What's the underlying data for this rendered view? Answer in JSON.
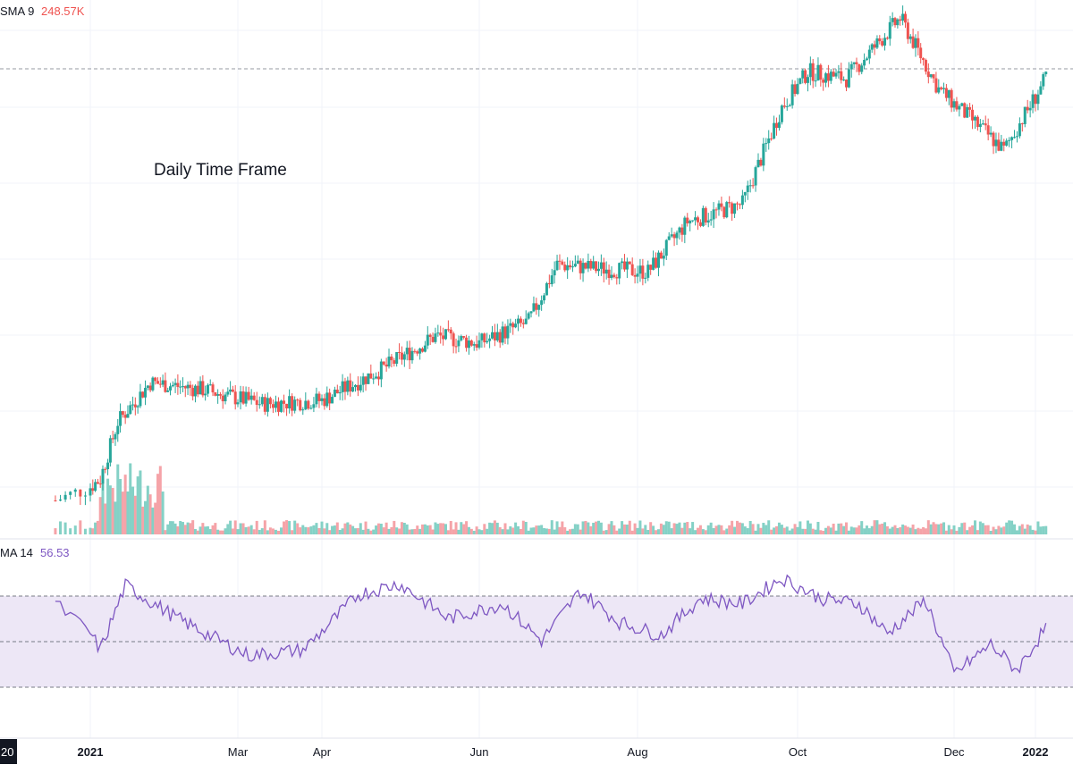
{
  "header": {
    "volume_indicator": "SMA 9",
    "volume_value": "248.57K",
    "rsi_indicator": "MA 14",
    "rsi_value": "56.53"
  },
  "annotation": "Daily Time Frame",
  "colors": {
    "up": "#26a69a",
    "up_volume": "#84d1c6",
    "down": "#ef5350",
    "down_volume": "#f5a3a8",
    "rsi_line": "#7e57c2",
    "rsi_band": "#ede7f6",
    "grid": "#f0f3fa",
    "volume_value_color": "#ef5350",
    "rsi_value_color": "#7e57c2"
  },
  "x_axis": {
    "ticks": [
      {
        "label": "20",
        "dark": true
      },
      {
        "label": "2021",
        "bold": true
      },
      {
        "label": "Mar"
      },
      {
        "label": "Apr"
      },
      {
        "label": "Jun"
      },
      {
        "label": "Aug"
      },
      {
        "label": "Oct"
      },
      {
        "label": "Dec"
      },
      {
        "label": "2022",
        "bold": true
      }
    ]
  },
  "chart_data": {
    "type": "candlestick",
    "title": "",
    "annotation": "Daily Time Frame",
    "x_range": [
      "2020-12",
      "2022-01"
    ],
    "price_trend": [
      {
        "date": "2020-12-25",
        "close": 30
      },
      {
        "date": "2021-01-05",
        "close": 36
      },
      {
        "date": "2021-01-12",
        "close": 52
      },
      {
        "date": "2021-01-25",
        "close": 63
      },
      {
        "date": "2021-02-15",
        "close": 61
      },
      {
        "date": "2021-03-10",
        "close": 57
      },
      {
        "date": "2021-04-01",
        "close": 58
      },
      {
        "date": "2021-04-25",
        "close": 67
      },
      {
        "date": "2021-05-15",
        "close": 76
      },
      {
        "date": "2021-06-01",
        "close": 74
      },
      {
        "date": "2021-06-20",
        "close": 80
      },
      {
        "date": "2021-07-01",
        "close": 96
      },
      {
        "date": "2021-07-15",
        "close": 95
      },
      {
        "date": "2021-08-05",
        "close": 94
      },
      {
        "date": "2021-08-20",
        "close": 108
      },
      {
        "date": "2021-09-10",
        "close": 113
      },
      {
        "date": "2021-09-25",
        "close": 140
      },
      {
        "date": "2021-10-05",
        "close": 150
      },
      {
        "date": "2021-10-20",
        "close": 148
      },
      {
        "date": "2021-11-10",
        "close": 165
      },
      {
        "date": "2021-11-25",
        "close": 145
      },
      {
        "date": "2021-12-10",
        "close": 135
      },
      {
        "date": "2021-12-20",
        "close": 128
      },
      {
        "date": "2022-01-05",
        "close": 148
      }
    ],
    "volume_sma9_last": "248.57K",
    "rsi": {
      "name": "MA 14",
      "last": 56.53,
      "bands": [
        70,
        50,
        30
      ],
      "trend": [
        {
          "date": "2020-12-25",
          "value": 70
        },
        {
          "date": "2021-01-05",
          "value": 45
        },
        {
          "date": "2021-01-15",
          "value": 80
        },
        {
          "date": "2021-02-05",
          "value": 62
        },
        {
          "date": "2021-03-05",
          "value": 42
        },
        {
          "date": "2021-03-25",
          "value": 45
        },
        {
          "date": "2021-04-15",
          "value": 75
        },
        {
          "date": "2021-05-01",
          "value": 81
        },
        {
          "date": "2021-05-20",
          "value": 62
        },
        {
          "date": "2021-06-10",
          "value": 70
        },
        {
          "date": "2021-06-25",
          "value": 50
        },
        {
          "date": "2021-07-10",
          "value": 77
        },
        {
          "date": "2021-07-25",
          "value": 60
        },
        {
          "date": "2021-08-10",
          "value": 53
        },
        {
          "date": "2021-08-25",
          "value": 73
        },
        {
          "date": "2021-09-10",
          "value": 70
        },
        {
          "date": "2021-09-25",
          "value": 84
        },
        {
          "date": "2021-10-10",
          "value": 73
        },
        {
          "date": "2021-10-25",
          "value": 70
        },
        {
          "date": "2021-11-05",
          "value": 54
        },
        {
          "date": "2021-11-20",
          "value": 72
        },
        {
          "date": "2021-12-01",
          "value": 32
        },
        {
          "date": "2021-12-15",
          "value": 48
        },
        {
          "date": "2021-12-25",
          "value": 34
        },
        {
          "date": "2022-01-05",
          "value": 57
        }
      ]
    }
  }
}
